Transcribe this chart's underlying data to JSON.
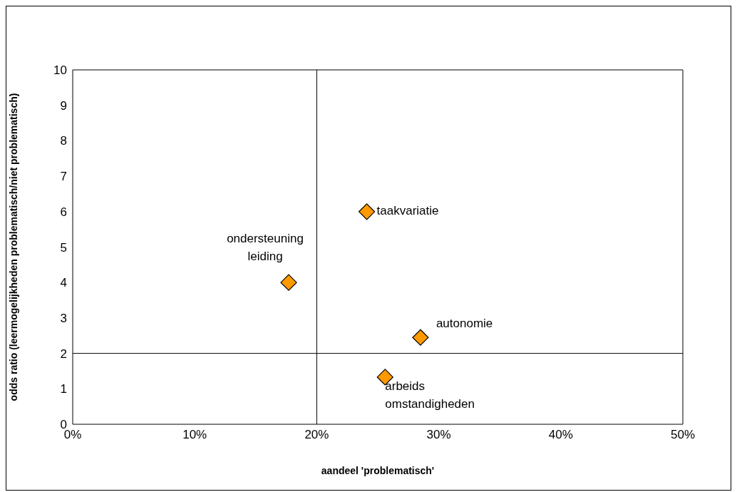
{
  "chart_data": {
    "type": "scatter",
    "xlabel": "aandeel 'problematisch'",
    "ylabel": "odds ratio (leermogelijkheden problematisch/niet problematisch)",
    "x": [
      17.7,
      24.1,
      28.5,
      25.6
    ],
    "values": [
      4.0,
      6.0,
      2.45,
      1.33
    ],
    "color": "#ff9900",
    "marker": "diamond",
    "xlim": [
      0,
      50
    ],
    "xticks": [
      {
        "value": 0,
        "label": "0%"
      },
      {
        "value": 10,
        "label": "10%"
      },
      {
        "value": 20,
        "label": "20%"
      },
      {
        "value": 30,
        "label": "30%"
      },
      {
        "value": 40,
        "label": "40%"
      },
      {
        "value": 50,
        "label": "50%"
      }
    ],
    "ylim": [
      0,
      10
    ],
    "yticks": [
      0,
      1,
      2,
      3,
      4,
      5,
      6,
      7,
      8,
      9,
      10
    ],
    "ref_lines": [
      {
        "axis": "x",
        "value": 20,
        "color": "#000000"
      },
      {
        "axis": "y",
        "value": 2,
        "color": "#000000"
      }
    ],
    "annotations": [
      {
        "text": "ondersteuning\nleiding",
        "x": 17.7,
        "y": 4.0
      },
      {
        "text": "taakvariatie",
        "x": 24.1,
        "y": 6.0
      },
      {
        "text": "autonomie",
        "x": 28.5,
        "y": 2.45
      },
      {
        "text": "arbeids\nomstandigheden",
        "x": 25.6,
        "y": 1.33
      }
    ]
  }
}
